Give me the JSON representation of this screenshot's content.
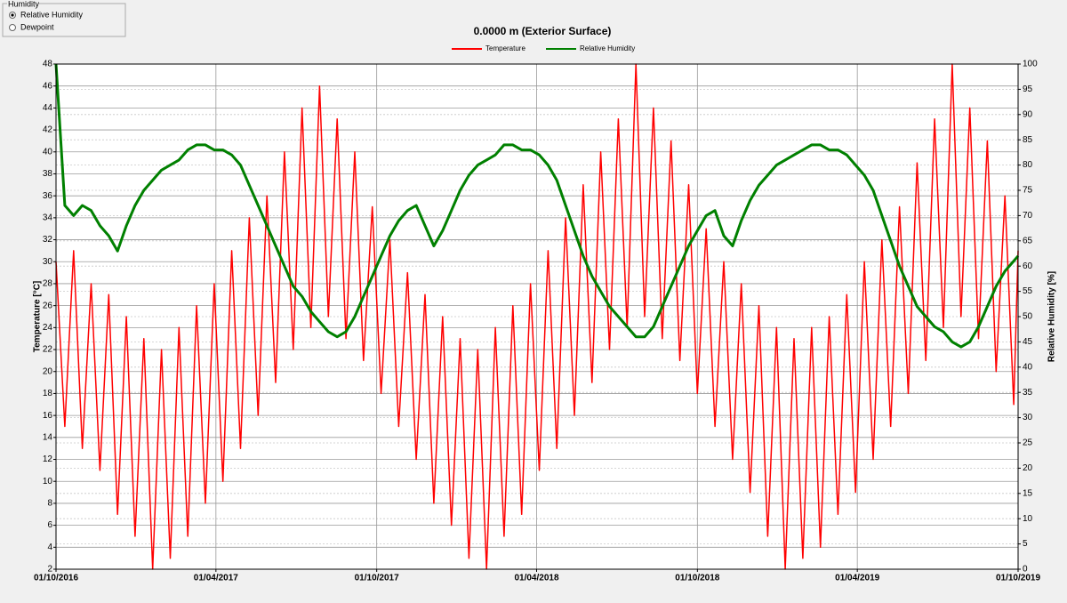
{
  "controls": {
    "title": "Humidity",
    "options": [
      "Relative Humidity",
      "Dewpoint"
    ],
    "selected": 0
  },
  "chart_data": {
    "type": "line",
    "title": "0.0000 m (Exterior Surface)",
    "ylabel": "Temperature [°C]",
    "y2label": "Relative Humidity [%]",
    "legend": "top",
    "x": [
      "2016-10-01",
      "2016-10-11",
      "2016-10-21",
      "2016-10-31",
      "2016-11-10",
      "2016-11-20",
      "2016-11-30",
      "2016-12-10",
      "2016-12-20",
      "2016-12-30",
      "2017-01-09",
      "2017-01-19",
      "2017-01-29",
      "2017-02-08",
      "2017-02-18",
      "2017-02-28",
      "2017-03-10",
      "2017-03-20",
      "2017-03-30",
      "2017-04-09",
      "2017-04-19",
      "2017-04-29",
      "2017-05-09",
      "2017-05-19",
      "2017-05-29",
      "2017-06-08",
      "2017-06-18",
      "2017-06-28",
      "2017-07-08",
      "2017-07-18",
      "2017-07-28",
      "2017-08-07",
      "2017-08-17",
      "2017-08-27",
      "2017-09-06",
      "2017-09-16",
      "2017-09-26",
      "2017-10-06",
      "2017-10-16",
      "2017-10-26",
      "2017-11-05",
      "2017-11-15",
      "2017-11-25",
      "2017-12-05",
      "2017-12-15",
      "2017-12-25",
      "2018-01-04",
      "2018-01-14",
      "2018-01-24",
      "2018-02-03",
      "2018-02-13",
      "2018-02-23",
      "2018-03-05",
      "2018-03-15",
      "2018-03-25",
      "2018-04-04",
      "2018-04-14",
      "2018-04-24",
      "2018-05-04",
      "2018-05-14",
      "2018-05-24",
      "2018-06-03",
      "2018-06-13",
      "2018-06-23",
      "2018-07-03",
      "2018-07-13",
      "2018-07-23",
      "2018-08-02",
      "2018-08-12",
      "2018-08-22",
      "2018-09-01",
      "2018-09-11",
      "2018-09-21",
      "2018-10-01",
      "2018-10-11",
      "2018-10-21",
      "2018-10-31",
      "2018-11-10",
      "2018-11-20",
      "2018-11-30",
      "2018-12-10",
      "2018-12-20",
      "2018-12-30",
      "2019-01-09",
      "2019-01-19",
      "2019-01-29",
      "2019-02-08",
      "2019-02-18",
      "2019-02-28",
      "2019-03-10",
      "2019-03-20",
      "2019-03-30",
      "2019-04-09",
      "2019-04-19",
      "2019-04-29",
      "2019-05-09",
      "2019-05-19",
      "2019-05-29",
      "2019-06-08",
      "2019-06-18",
      "2019-06-28",
      "2019-07-08",
      "2019-07-18",
      "2019-07-28",
      "2019-08-07",
      "2019-08-17",
      "2019-08-27",
      "2019-09-06",
      "2019-09-16",
      "2019-09-26",
      "2019-10-01"
    ],
    "series": [
      {
        "name": "Temperature",
        "color": "#ff0000",
        "values": [
          30,
          15,
          31,
          13,
          28,
          11,
          27,
          7,
          25,
          5,
          23,
          2,
          22,
          3,
          24,
          5,
          26,
          8,
          28,
          10,
          31,
          13,
          34,
          16,
          36,
          19,
          40,
          22,
          44,
          24,
          46,
          25,
          43,
          23,
          40,
          21,
          35,
          18,
          32,
          15,
          29,
          12,
          27,
          8,
          25,
          6,
          23,
          3,
          22,
          2,
          24,
          5,
          26,
          7,
          28,
          11,
          31,
          13,
          34,
          16,
          37,
          19,
          40,
          22,
          43,
          24,
          48,
          25,
          44,
          23,
          41,
          21,
          37,
          18,
          33,
          15,
          30,
          12,
          28,
          9,
          26,
          5,
          24,
          2,
          23,
          3,
          24,
          4,
          25,
          7,
          27,
          9,
          30,
          12,
          32,
          15,
          35,
          18,
          39,
          21,
          43,
          24,
          48,
          25,
          44,
          23,
          41,
          20,
          36,
          17,
          31
        ]
      },
      {
        "name": "Relative Humidity",
        "color": "#008000",
        "axis": "y2",
        "values": [
          100,
          72,
          70,
          72,
          71,
          68,
          66,
          63,
          68,
          72,
          75,
          77,
          79,
          80,
          81,
          83,
          84,
          84,
          83,
          83,
          82,
          80,
          76,
          72,
          68,
          64,
          60,
          56,
          54,
          51,
          49,
          47,
          46,
          47,
          50,
          54,
          58,
          62,
          66,
          69,
          71,
          72,
          68,
          64,
          67,
          71,
          75,
          78,
          80,
          81,
          82,
          84,
          84,
          83,
          83,
          82,
          80,
          77,
          72,
          67,
          62,
          58,
          55,
          52,
          50,
          48,
          46,
          46,
          48,
          52,
          56,
          60,
          64,
          67,
          70,
          71,
          66,
          64,
          69,
          73,
          76,
          78,
          80,
          81,
          82,
          83,
          84,
          84,
          83,
          83,
          82,
          80,
          78,
          75,
          70,
          65,
          60,
          56,
          52,
          50,
          48,
          47,
          45,
          44,
          45,
          48,
          52,
          56,
          59,
          61,
          62
        ]
      }
    ],
    "xlim": [
      "2016-10-01",
      "2019-10-01"
    ],
    "xticks": [
      {
        "value": "2016-10-01",
        "label": "01/10/2016"
      },
      {
        "value": "2017-04-01",
        "label": "01/04/2017"
      },
      {
        "value": "2017-10-01",
        "label": "01/10/2017"
      },
      {
        "value": "2018-04-01",
        "label": "01/04/2018"
      },
      {
        "value": "2018-10-01",
        "label": "01/10/2018"
      },
      {
        "value": "2019-04-01",
        "label": "01/04/2019"
      },
      {
        "value": "2019-10-01",
        "label": "01/10/2019"
      }
    ],
    "ylim": [
      2,
      48
    ],
    "yticks": [
      2,
      4,
      6,
      8,
      10,
      12,
      14,
      16,
      18,
      20,
      22,
      24,
      26,
      28,
      30,
      32,
      34,
      36,
      38,
      40,
      42,
      44,
      46,
      48
    ],
    "y2lim": [
      0,
      100
    ],
    "y2ticks": [
      0,
      5,
      10,
      15,
      20,
      25,
      30,
      35,
      40,
      45,
      50,
      55,
      60,
      65,
      70,
      75,
      80,
      85,
      90,
      95,
      100
    ],
    "grid": true
  }
}
